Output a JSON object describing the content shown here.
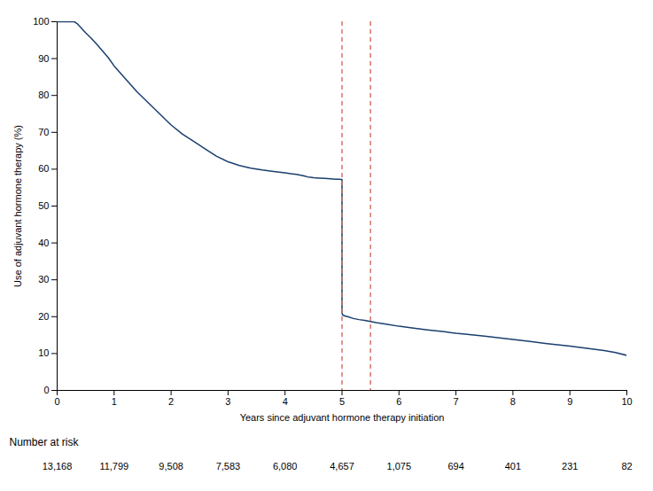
{
  "chart_data": {
    "type": "line",
    "xlabel": "Years since adjuvant hormone therapy initiation",
    "ylabel": "Use of adjuvant hormone therapy (%)",
    "x": [
      0.0,
      0.3,
      0.35,
      0.5,
      0.6,
      0.7,
      0.8,
      0.9,
      1.0,
      1.2,
      1.4,
      1.6,
      1.8,
      2.0,
      2.2,
      2.4,
      2.6,
      2.8,
      3.0,
      3.2,
      3.4,
      3.6,
      3.8,
      4.0,
      4.1,
      4.2,
      4.3,
      4.35,
      4.4,
      4.45,
      4.5,
      4.6,
      4.7,
      4.8,
      4.9,
      4.95,
      4.99,
      5.0,
      5.0,
      5.01,
      5.05,
      5.1,
      5.2,
      5.3,
      5.4,
      5.5,
      5.6,
      5.8,
      6.0,
      6.2,
      6.5,
      6.8,
      7.0,
      7.2,
      7.5,
      7.8,
      8.0,
      8.3,
      8.6,
      9.0,
      9.3,
      9.6,
      9.8,
      10.0
    ],
    "values": [
      100.0,
      100.0,
      99.5,
      97.0,
      95.5,
      93.8,
      92.0,
      90.2,
      88.0,
      84.5,
      81.0,
      78.0,
      75.0,
      72.0,
      69.5,
      67.5,
      65.5,
      63.5,
      62.0,
      61.0,
      60.3,
      59.8,
      59.4,
      59.0,
      58.8,
      58.6,
      58.3,
      58.1,
      57.9,
      57.8,
      57.7,
      57.6,
      57.5,
      57.4,
      57.3,
      57.25,
      57.2,
      57.2,
      21.0,
      20.5,
      20.2,
      20.0,
      19.5,
      19.2,
      19.0,
      18.7,
      18.4,
      17.9,
      17.4,
      17.0,
      16.4,
      15.9,
      15.5,
      15.2,
      14.7,
      14.2,
      13.8,
      13.3,
      12.7,
      12.0,
      11.4,
      10.8,
      10.3,
      9.5
    ],
    "color": "#1a3f6f",
    "xlim": [
      0,
      10
    ],
    "ylim": [
      0,
      100
    ],
    "xticks": [
      0,
      1,
      2,
      3,
      4,
      5,
      6,
      7,
      8,
      9,
      10
    ],
    "yticks": [
      0,
      10,
      20,
      30,
      40,
      50,
      60,
      70,
      80,
      90,
      100
    ],
    "grid": false,
    "reference_lines": {
      "x": [
        5.0,
        5.5
      ],
      "color": "#d9736a",
      "line_style": "dashed"
    },
    "number_at_risk": {
      "label": "Number at risk",
      "x": [
        0,
        1,
        2,
        3,
        4,
        5,
        6,
        7,
        8,
        9,
        10
      ],
      "values": [
        13168,
        11799,
        9508,
        7583,
        6080,
        4657,
        1075,
        694,
        401,
        231,
        82
      ],
      "value_labels": [
        "13,168",
        "11,799",
        "9,508",
        "7,583",
        "6,080",
        "4,657",
        "1,075",
        "694",
        "401",
        "231",
        "82"
      ]
    }
  }
}
